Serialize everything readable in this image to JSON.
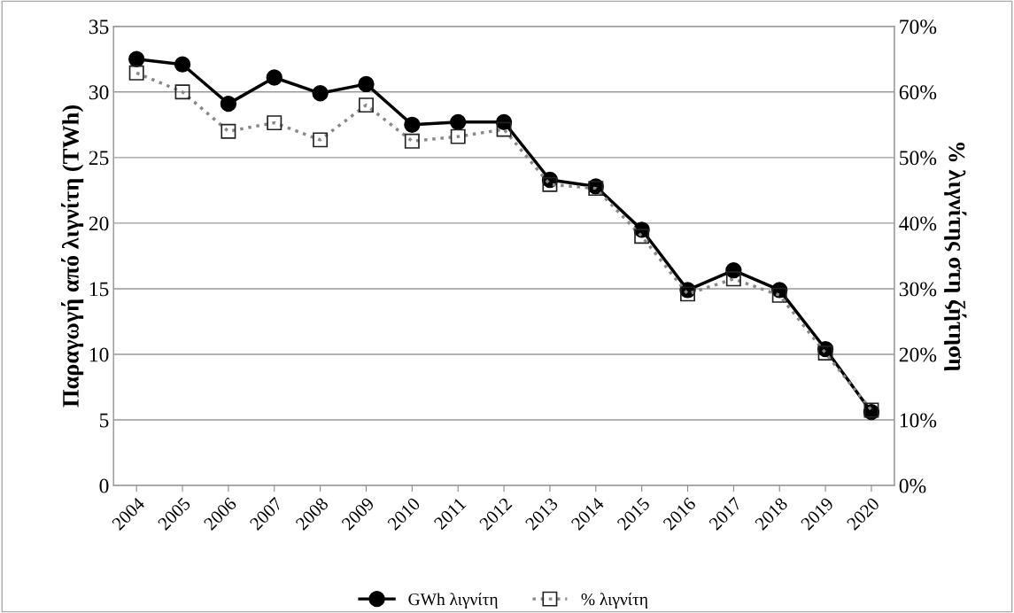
{
  "chart_data": {
    "type": "line",
    "ylabel": "Παραγωγή από λιγνίτη (TWh)",
    "y2label": "% λιγνίτης στη ζήτηση",
    "categories": [
      "2004",
      "2005",
      "2006",
      "2007",
      "2008",
      "2009",
      "2010",
      "2011",
      "2012",
      "2013",
      "2014",
      "2015",
      "2016",
      "2017",
      "2018",
      "2019",
      "2020"
    ],
    "series": [
      {
        "name": "GWh λιγνίτη",
        "color": "#000000",
        "marker": "circle",
        "line_style": "solid",
        "values": [
          32.5,
          32.1,
          29.1,
          31.1,
          29.9,
          30.6,
          27.5,
          27.7,
          27.7,
          23.3,
          22.8,
          19.5,
          14.9,
          16.4,
          14.9,
          10.4,
          5.6
        ]
      },
      {
        "name": "% λιγνίτη",
        "color": "#888888",
        "axis": "y2",
        "marker": "square",
        "line_style": "dotted",
        "values": [
          62.9,
          60.0,
          54.0,
          55.3,
          52.7,
          58.0,
          52.5,
          53.2,
          54.3,
          45.9,
          45.3,
          38.0,
          29.2,
          31.5,
          29.0,
          20.2,
          11.5
        ]
      }
    ],
    "ylim": [
      0,
      35
    ],
    "yticks": [
      0,
      5,
      10,
      15,
      20,
      25,
      30,
      35
    ],
    "y2lim": [
      0,
      70
    ],
    "y2ticks": [
      {
        "value": 0,
        "label": "0%"
      },
      {
        "value": 10,
        "label": "10%"
      },
      {
        "value": 20,
        "label": "20%"
      },
      {
        "value": 30,
        "label": "30%"
      },
      {
        "value": 40,
        "label": "40%"
      },
      {
        "value": 50,
        "label": "50%"
      },
      {
        "value": 60,
        "label": "60%"
      },
      {
        "value": 70,
        "label": "70%"
      }
    ],
    "grid": "y",
    "legend": "bottom"
  }
}
